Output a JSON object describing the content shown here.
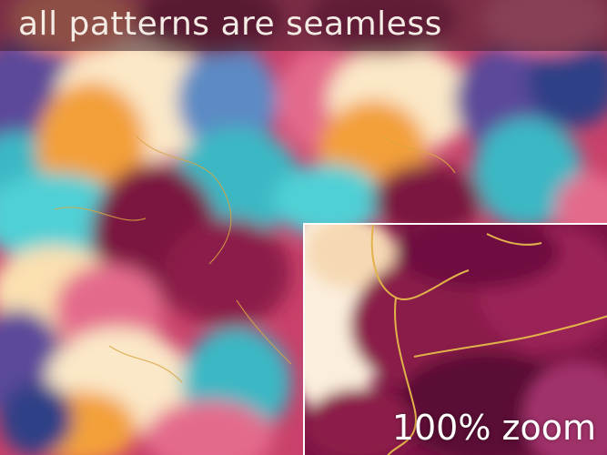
{
  "banner": {
    "headline": "all patterns are seamless"
  },
  "inset": {
    "zoom_label": "100% zoom"
  },
  "palette": {
    "burgundy": "#8c1a4a",
    "deep_wine": "#5a0f35",
    "teal": "#3bb8c4",
    "turquoise": "#4fd0d6",
    "cream": "#fbe8c8",
    "orange": "#f3a03a",
    "pink": "#e46a8c",
    "purple": "#5b4a9a",
    "navy": "#2f3f86",
    "gold": "#d9a441"
  }
}
